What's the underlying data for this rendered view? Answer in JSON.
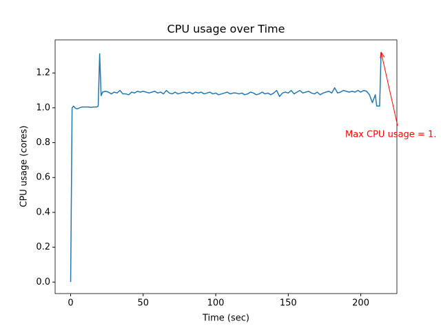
{
  "chart_data": {
    "type": "line",
    "title": "CPU usage over Time",
    "xlabel": "Time (sec)",
    "ylabel": "CPU usage (cores)",
    "color": "#1f77b4",
    "x": [
      0,
      1,
      2,
      3,
      4,
      5,
      6,
      8,
      10,
      12,
      14,
      16,
      18,
      19,
      20,
      21,
      22,
      24,
      26,
      28,
      30,
      32,
      34,
      36,
      38,
      40,
      42,
      44,
      46,
      48,
      50,
      52,
      54,
      56,
      58,
      60,
      62,
      64,
      66,
      68,
      70,
      72,
      74,
      76,
      78,
      80,
      82,
      84,
      86,
      88,
      90,
      92,
      94,
      96,
      98,
      100,
      102,
      104,
      106,
      108,
      110,
      112,
      114,
      116,
      118,
      120,
      122,
      124,
      126,
      128,
      130,
      132,
      134,
      136,
      138,
      140,
      142,
      144,
      146,
      148,
      150,
      152,
      154,
      156,
      158,
      160,
      162,
      164,
      166,
      168,
      170,
      172,
      174,
      176,
      178,
      180,
      182,
      184,
      186,
      188,
      190,
      192,
      194,
      196,
      198,
      200,
      202,
      204,
      206,
      208,
      210,
      211,
      212,
      213,
      214
    ],
    "values": [
      0,
      1.0,
      1.01,
      1.0,
      0.995,
      0.995,
      1.0,
      1.005,
      1.005,
      1.005,
      1.003,
      1.005,
      1.005,
      1.01,
      1.31,
      1.07,
      1.09,
      1.095,
      1.09,
      1.08,
      1.09,
      1.085,
      1.1,
      1.08,
      1.08,
      1.075,
      1.09,
      1.085,
      1.095,
      1.09,
      1.095,
      1.09,
      1.085,
      1.09,
      1.095,
      1.085,
      1.09,
      1.08,
      1.1,
      1.085,
      1.08,
      1.09,
      1.08,
      1.085,
      1.09,
      1.085,
      1.09,
      1.08,
      1.09,
      1.085,
      1.09,
      1.08,
      1.085,
      1.09,
      1.08,
      1.085,
      1.075,
      1.08,
      1.085,
      1.09,
      1.08,
      1.085,
      1.085,
      1.08,
      1.085,
      1.075,
      1.08,
      1.09,
      1.085,
      1.075,
      1.08,
      1.09,
      1.08,
      1.085,
      1.075,
      1.085,
      1.1,
      1.065,
      1.085,
      1.09,
      1.085,
      1.1,
      1.08,
      1.09,
      1.1,
      1.085,
      1.09,
      1.095,
      1.085,
      1.08,
      1.09,
      1.075,
      1.085,
      1.09,
      1.095,
      1.085,
      1.115,
      1.085,
      1.09,
      1.1,
      1.095,
      1.09,
      1.095,
      1.09,
      1.1,
      1.09,
      1.1,
      1.095,
      1.075,
      1.03,
      1.075,
      1.01,
      1.01,
      1.01,
      1.32
    ],
    "xlim": [
      -10.7,
      224.9
    ],
    "ylim": [
      -0.066,
      1.39
    ],
    "xticks": [
      0,
      50,
      100,
      150,
      200
    ],
    "yticks": [
      {
        "value": 0,
        "label": "0.0"
      },
      {
        "value": 0.2,
        "label": "0.2"
      },
      {
        "value": 0.4,
        "label": "0.4"
      },
      {
        "value": 0.6,
        "label": "0.6"
      },
      {
        "value": 0.8,
        "label": "0.8"
      },
      {
        "value": 1.0,
        "label": "1.0"
      },
      {
        "value": 1.2,
        "label": "1.2"
      }
    ],
    "annotation": {
      "text": "Max CPU usage = 1.",
      "color": "#ff0000"
    }
  }
}
